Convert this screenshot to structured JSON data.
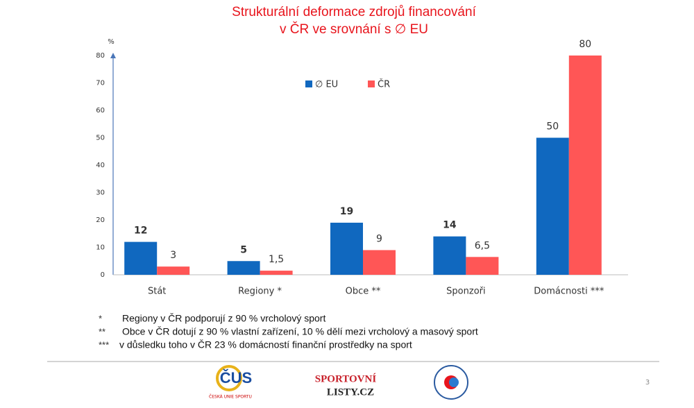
{
  "chart_data": {
    "type": "bar",
    "title": "Strukturální deformace zdrojů financování",
    "subtitle": "v ČR ve srovnání s ∅ EU",
    "y_label": "%",
    "categories": [
      "Stát",
      "Regiony *",
      "Obce **",
      "Sponzoři",
      "Domácnosti ***"
    ],
    "series": [
      {
        "name": "∅ EU",
        "color": "#1068bf",
        "values": [
          12,
          5,
          19,
          14,
          50
        ]
      },
      {
        "name": "ČR",
        "color": "#ff5656",
        "values": [
          3,
          1.5,
          9,
          6.5,
          80
        ],
        "value_labels": [
          "3",
          "1,5",
          "9",
          "6,5",
          "80"
        ]
      }
    ],
    "ylim": [
      0,
      80
    ],
    "yticks": [
      0,
      10,
      20,
      30,
      40,
      50,
      60,
      70,
      80
    ],
    "grid": false
  },
  "footnotes": [
    {
      "marker": "*",
      "text": "Regiony v ČR podporují z 90 % vrcholový sport"
    },
    {
      "marker": "**",
      "text": "Obce v ČR dotují z 90 % vlastní zařízení, 10 % dělí mezi vrcholový a masový sport"
    },
    {
      "marker": "***",
      "text": "v důsledku toho v ČR 23 % domácností finanční prostředky na sport"
    }
  ],
  "logos": {
    "cus": "ČUS",
    "cus_caption": "ČESKÁ UNIE SPORTU",
    "listy_top": "SPORTOVNÍ",
    "listy_bottom": "LISTY.CZ"
  },
  "page_number": "3"
}
